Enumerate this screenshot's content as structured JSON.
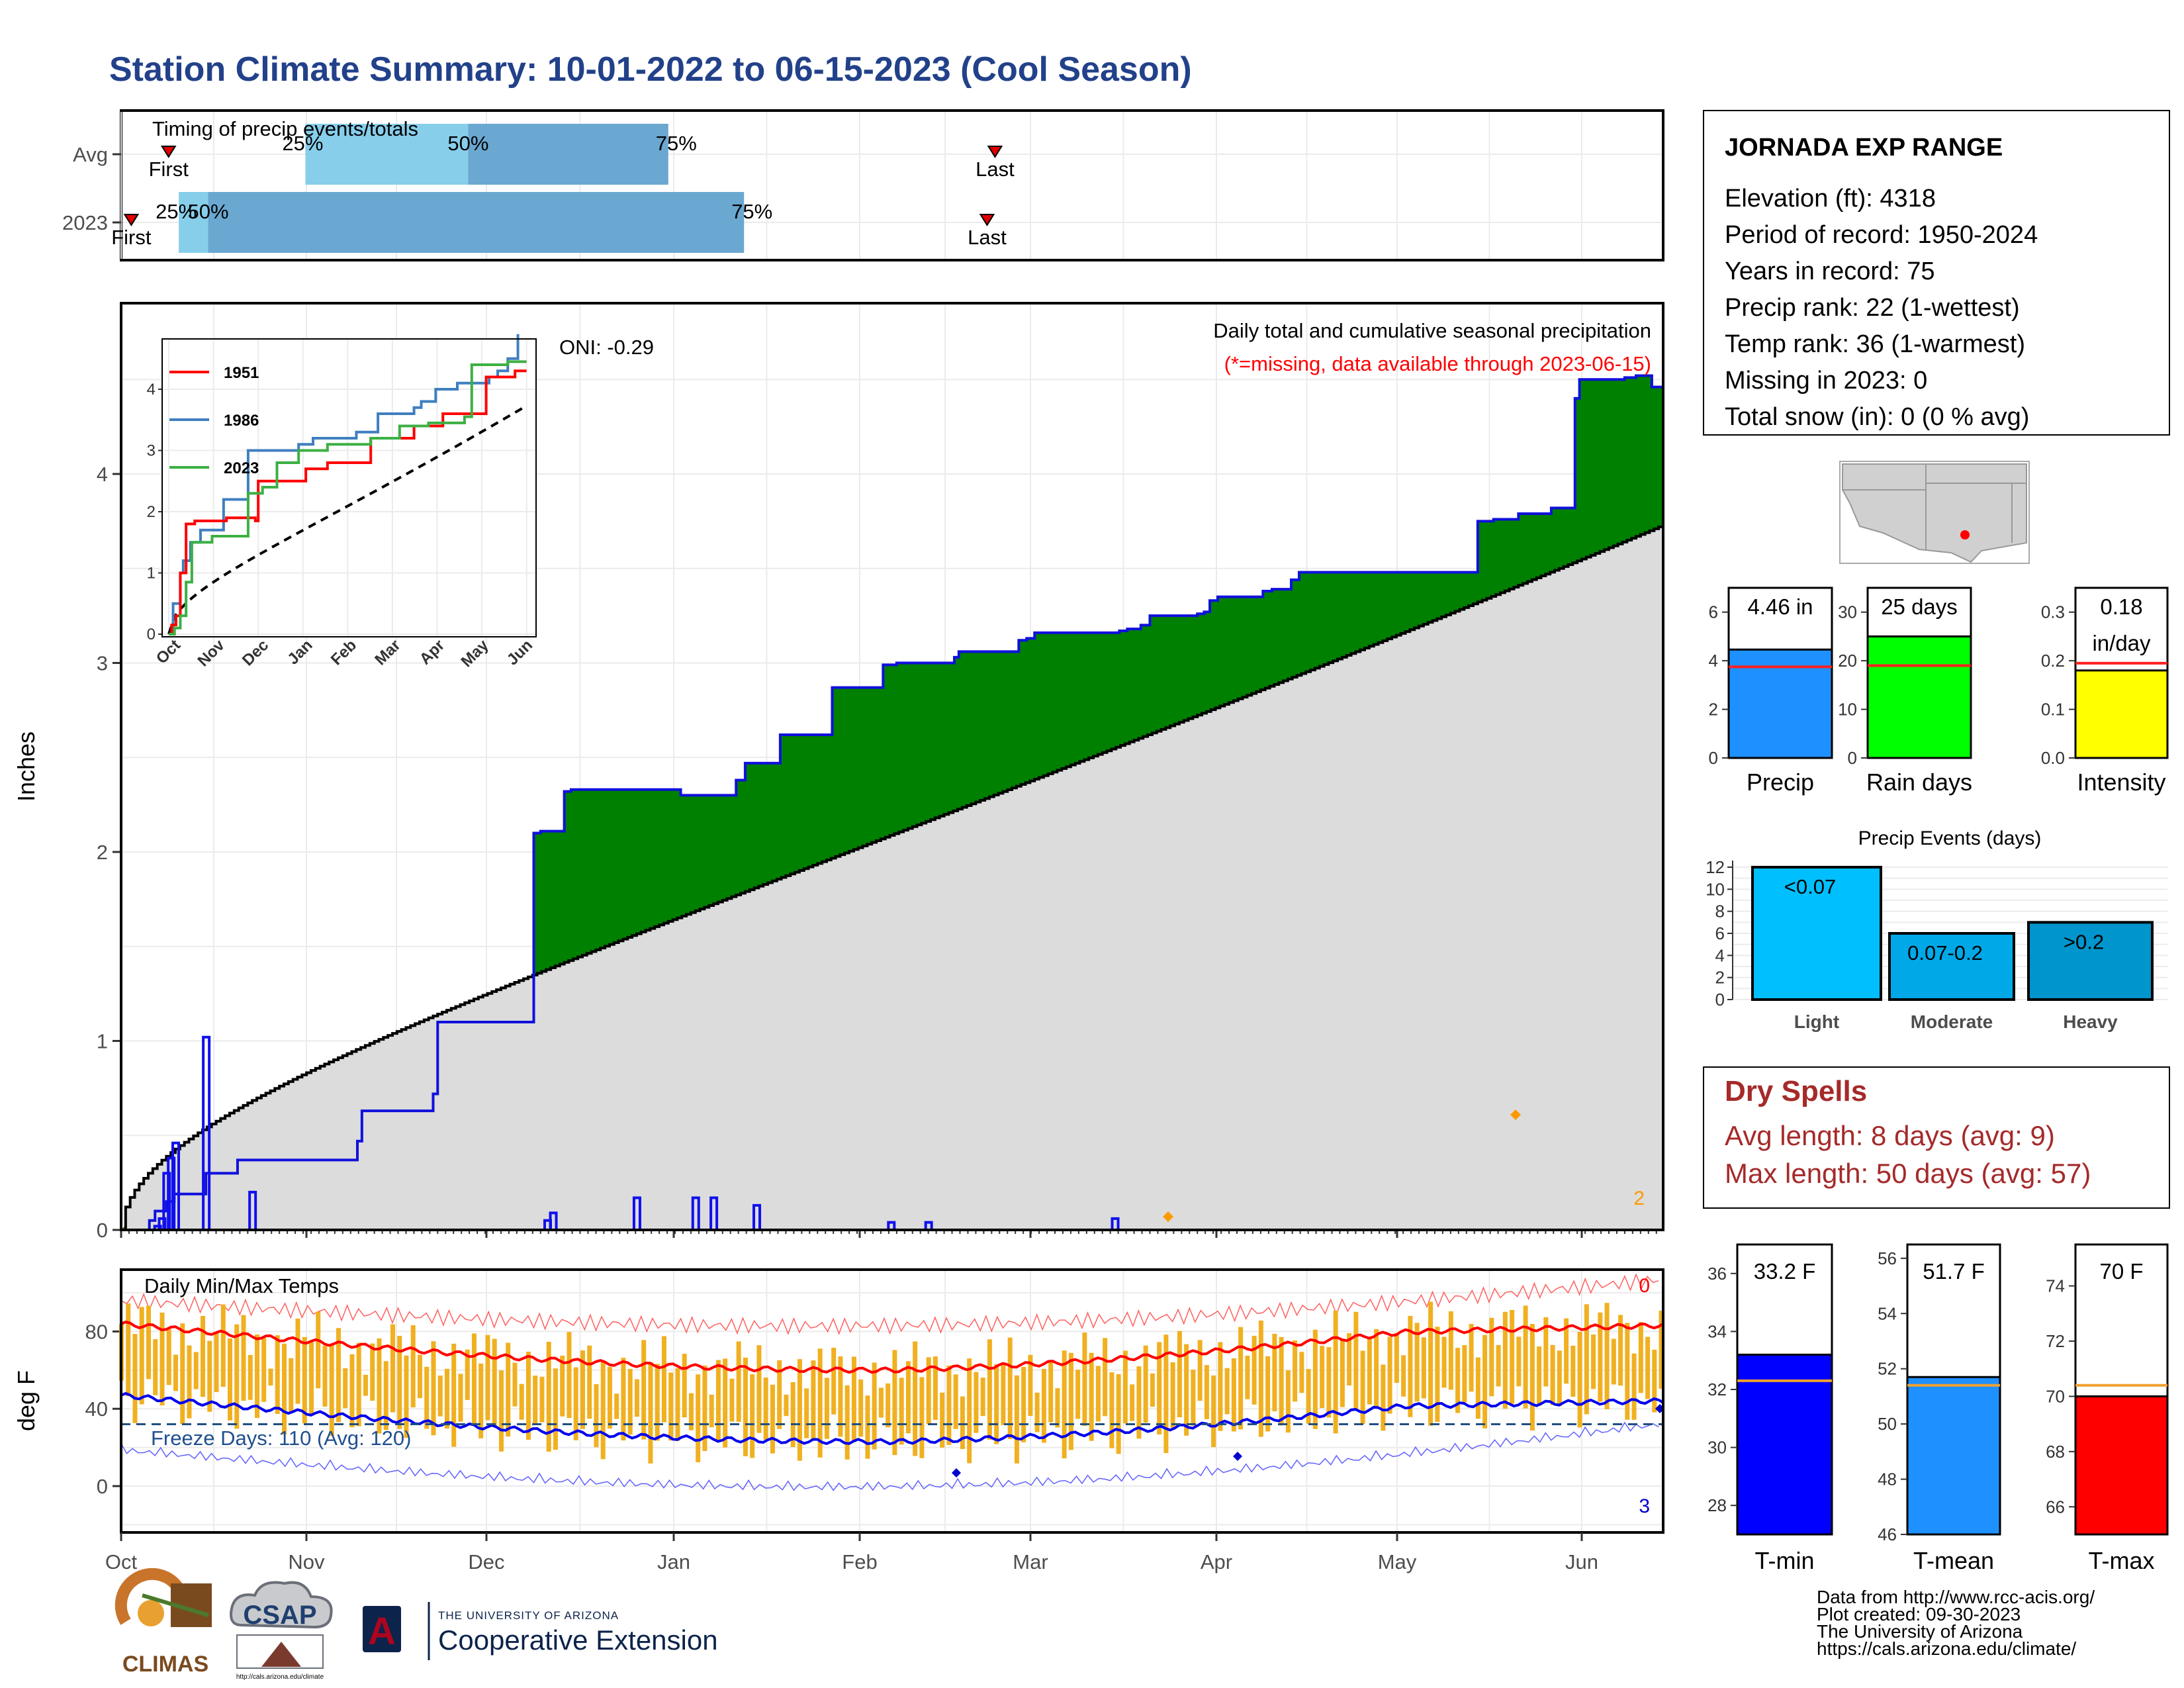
{
  "title": "Station Climate Summary: 10-01-2022 to 06-15-2023 (Cool Season)",
  "colors": {
    "title": "#22418a",
    "quartile_light": "#87ceeb",
    "quartile_dark": "#6aa8d1",
    "precip_fill": "#008000",
    "deficit_fill": "#8b5a1b",
    "avg_fill": "#dcdcdc",
    "obs_line": "#1010dd",
    "temp_bar": "#f0b020",
    "tmax_line": "#ff0000",
    "tmin_line": "#0000ee",
    "freeze_line": "#1f4f7f",
    "dry_spell_text": "#a52a2a",
    "missing_note": "#ff0000"
  },
  "months": [
    "Oct",
    "Nov",
    "Dec",
    "Jan",
    "Feb",
    "Mar",
    "Apr",
    "May",
    "Jun"
  ],
  "timing_panel": {
    "label": "Timing of precip events/totals",
    "rows": [
      {
        "name": "Avg",
        "first_day": 42,
        "q25_day": 163,
        "q50_day": 307,
        "q75_day": 484,
        "last_day": 773,
        "first_label": "First",
        "q25_label": "25%",
        "q50_label": "50%",
        "q75_label": "75%",
        "last_label": "Last"
      },
      {
        "name": "2023",
        "first_day": 9,
        "q25_day": 51,
        "q50_day": 77,
        "q75_day": 551,
        "last_day": 766,
        "first_label": "First",
        "q25_label": "25%",
        "q50_label": "50%",
        "q75_label": "75%",
        "last_label": "Last"
      }
    ]
  },
  "precip_panel": {
    "ylabel": "Inches",
    "yticks": [
      "0",
      "1",
      "2",
      "3",
      "4"
    ],
    "oni": "ONI: -0.29",
    "note1": "Daily total and cumulative seasonal precipitation",
    "note2": "(*=missing, data available through 2023-06-15)",
    "count_right": "2"
  },
  "inset": {
    "yticks": [
      "0",
      "1",
      "2",
      "3",
      "4"
    ],
    "months": [
      "Oct",
      "Nov",
      "Dec",
      "Jan",
      "Feb",
      "Mar",
      "Apr",
      "May",
      "Jun"
    ],
    "series": [
      {
        "name": "1951",
        "color": "#ff0000"
      },
      {
        "name": "1986",
        "color": "#3f7fbf"
      },
      {
        "name": "2023",
        "color": "#3cb043"
      }
    ]
  },
  "temp_panel": {
    "ylabel": "deg F",
    "title": "Daily Min/Max Temps",
    "yticks": [
      "0",
      "40",
      "80"
    ],
    "freeze_label": "Freeze Days: 110 (Avg: 120)",
    "count_top": "0",
    "count_bottom": "3"
  },
  "station": {
    "name": "JORNADA EXP RANGE",
    "lines": [
      "Elevation (ft): 4318",
      "Period of record: 1950-2024",
      "Years in record: 75",
      "Precip rank: 22 (1-wettest)",
      "Temp rank: 36 (1-warmest)",
      "Missing in 2023: 0",
      "Total snow (in): 0 (0 % avg)"
    ]
  },
  "mini_bars": [
    {
      "label": "Precip",
      "value": 4.46,
      "avg": 3.75,
      "ymax": 7,
      "ticks": [
        "0",
        "2",
        "4",
        "6"
      ],
      "tick_values": [
        0,
        2,
        4,
        6
      ],
      "text": "4.46 in",
      "text2": "",
      "color": "#1e90ff"
    },
    {
      "label": "Rain days",
      "value": 25,
      "avg": 19,
      "ymax": 35,
      "ticks": [
        "0",
        "10",
        "20",
        "30"
      ],
      "tick_values": [
        0,
        10,
        20,
        30
      ],
      "text": "25 days",
      "text2": "",
      "color": "#00ff00"
    },
    {
      "label": "Intensity",
      "value": 0.18,
      "avg": 0.195,
      "ymax": 0.35,
      "ticks": [
        "0.0",
        "0.1",
        "0.2",
        "0.3"
      ],
      "tick_values": [
        0,
        0.1,
        0.2,
        0.3
      ],
      "text": "0.18",
      "text2": "in/day",
      "color": "#ffff00"
    }
  ],
  "precip_events": {
    "title": "Precip Events (days)",
    "yticks": [
      "0",
      "2",
      "4",
      "6",
      "8",
      "10",
      "12"
    ],
    "bars": [
      {
        "label": "Light",
        "value": 12,
        "text": "<0.07",
        "color": "#00bfff"
      },
      {
        "label": "Moderate",
        "value": 6,
        "text": "0.07-0.2",
        "color": "#00a8e8"
      },
      {
        "label": "Heavy",
        "value": 7,
        "text": ">0.2",
        "color": "#0095cc"
      }
    ]
  },
  "dry_spells": {
    "title": "Dry Spells",
    "avg_line": "Avg length: 8 days (avg: 9)",
    "max_line": "Max length: 50 days (avg: 57)"
  },
  "temp_bars": [
    {
      "label": "T-min",
      "value": 33.2,
      "avg": 32.3,
      "ymin": 27,
      "ymax": 37,
      "ticks": [
        "28",
        "30",
        "32",
        "34",
        "36"
      ],
      "tick_values": [
        28,
        30,
        32,
        34,
        36
      ],
      "text": "33.2 F",
      "color": "#0000ff"
    },
    {
      "label": "T-mean",
      "value": 51.7,
      "avg": 51.4,
      "ymin": 46,
      "ymax": 56.5,
      "ticks": [
        "46",
        "48",
        "50",
        "52",
        "54",
        "56"
      ],
      "tick_values": [
        46,
        48,
        50,
        52,
        54,
        56
      ],
      "text": "51.7 F",
      "color": "#1e90ff"
    },
    {
      "label": "T-max",
      "value": 70,
      "avg": 70.4,
      "ymin": 65,
      "ymax": 75.5,
      "ticks": [
        "66",
        "68",
        "70",
        "72",
        "74"
      ],
      "tick_values": [
        66,
        68,
        70,
        72,
        74
      ],
      "text": "70 F",
      "color": "#ff0000"
    }
  ],
  "footer": {
    "lines": [
      "Data from http://www.rcc-acis.org/",
      "Plot created: 09-30-2023",
      "The University of Arizona",
      "https://cals.arizona.edu/climate/"
    ],
    "logo_climas": "CLIMAS",
    "logo_csap": "CSAP",
    "logo_csap_url": "http://cals.arizona.edu/climate",
    "logo_ua_top": "THE UNIVERSITY OF ARIZONA",
    "logo_ua_main": "Cooperative Extension",
    "logo_ua_letter": "A"
  },
  "chart_data": {
    "type": "area",
    "title": "Daily total and cumulative seasonal precipitation",
    "ylabel": "Inches",
    "ylim": [
      0,
      4.9
    ],
    "x_unit": "day of season (day 0 = 2022-10-01)",
    "cumulative_2023": {
      "x": [
        0,
        25,
        30,
        40,
        47,
        75,
        103,
        209,
        213,
        276,
        280,
        365,
        371,
        392,
        398,
        495,
        503,
        544,
        552,
        583,
        629,
        650,
        674,
        686,
        737,
        741,
        794,
        801,
        808,
        883,
        890,
        902,
        910,
        952,
        958,
        963,
        970,
        1010,
        1018,
        1035,
        1042,
        1186,
        1200,
        1214,
        1236,
        1265,
        1286,
        1290,
        1330,
        1340,
        1346,
        1354,
        1359,
        1364
      ],
      "y": [
        0,
        0.05,
        0.1,
        0.15,
        0.19,
        0.3,
        0.37,
        0.47,
        0.63,
        0.72,
        1.1,
        2.1,
        2.11,
        2.32,
        2.33,
        2.3,
        2.3,
        2.38,
        2.47,
        2.62,
        2.87,
        2.87,
        2.99,
        3.0,
        3.03,
        3.06,
        3.12,
        3.13,
        3.16,
        3.17,
        3.18,
        3.2,
        3.25,
        3.26,
        3.27,
        3.33,
        3.35,
        3.38,
        3.39,
        3.44,
        3.48,
        3.48,
        3.75,
        3.76,
        3.79,
        3.82,
        4.4,
        4.5,
        4.51,
        4.52,
        4.52,
        4.46,
        4.46,
        4.46
      ]
    },
    "daily_bars": {
      "x": [
        32,
        36,
        40,
        44,
        48,
        75,
        116,
        377,
        382,
        456,
        508,
        524,
        562,
        681,
        714,
        879
      ],
      "y": [
        0.02,
        0.06,
        0.3,
        0.38,
        0.46,
        1.02,
        0.2,
        0.05,
        0.09,
        0.17,
        0.17,
        0.17,
        0.13,
        0.04,
        0.04,
        0.06
      ]
    }
  }
}
